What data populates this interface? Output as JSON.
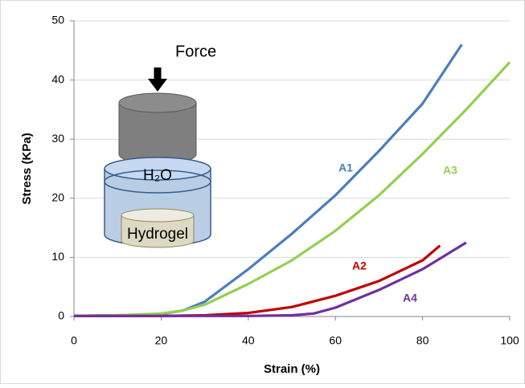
{
  "chart_data": {
    "type": "line",
    "xlabel": "Strain (%)",
    "ylabel": "Stress (KPa)",
    "xlim": [
      0,
      100
    ],
    "xticks": [
      0,
      20,
      40,
      60,
      80,
      100
    ],
    "ylim": [
      0,
      50
    ],
    "yticks": [
      0,
      10,
      20,
      30,
      40,
      50
    ],
    "grid": true,
    "annotations": [
      "Force",
      "H₂O",
      "Hydrogel"
    ],
    "series": [
      {
        "name": "A1",
        "color": "#4a7ebb",
        "x": [
          0,
          10,
          20,
          25,
          30,
          40,
          50,
          60,
          70,
          80,
          89
        ],
        "values": [
          0.1,
          0.2,
          0.4,
          1,
          2.5,
          8,
          14,
          20.5,
          28,
          36,
          46
        ]
      },
      {
        "name": "A3",
        "color": "#92d050",
        "x": [
          0,
          10,
          20,
          25,
          30,
          40,
          50,
          60,
          70,
          80,
          90,
          100
        ],
        "values": [
          0.1,
          0.2,
          0.5,
          1,
          2,
          5.5,
          9.5,
          14.5,
          20.5,
          27.5,
          35,
          43
        ]
      },
      {
        "name": "A2",
        "color": "#c00000",
        "x": [
          0,
          10,
          20,
          30,
          40,
          50,
          60,
          70,
          80,
          84
        ],
        "values": [
          0.1,
          0.1,
          0.1,
          0.2,
          0.6,
          1.6,
          3.5,
          6,
          9.5,
          12
        ]
      },
      {
        "name": "A4",
        "color": "#7030a0",
        "x": [
          0,
          20,
          40,
          50,
          55,
          60,
          70,
          80,
          90
        ],
        "values": [
          0.1,
          0.1,
          0.1,
          0.2,
          0.5,
          1.5,
          4.5,
          8,
          12.5
        ]
      }
    ]
  }
}
